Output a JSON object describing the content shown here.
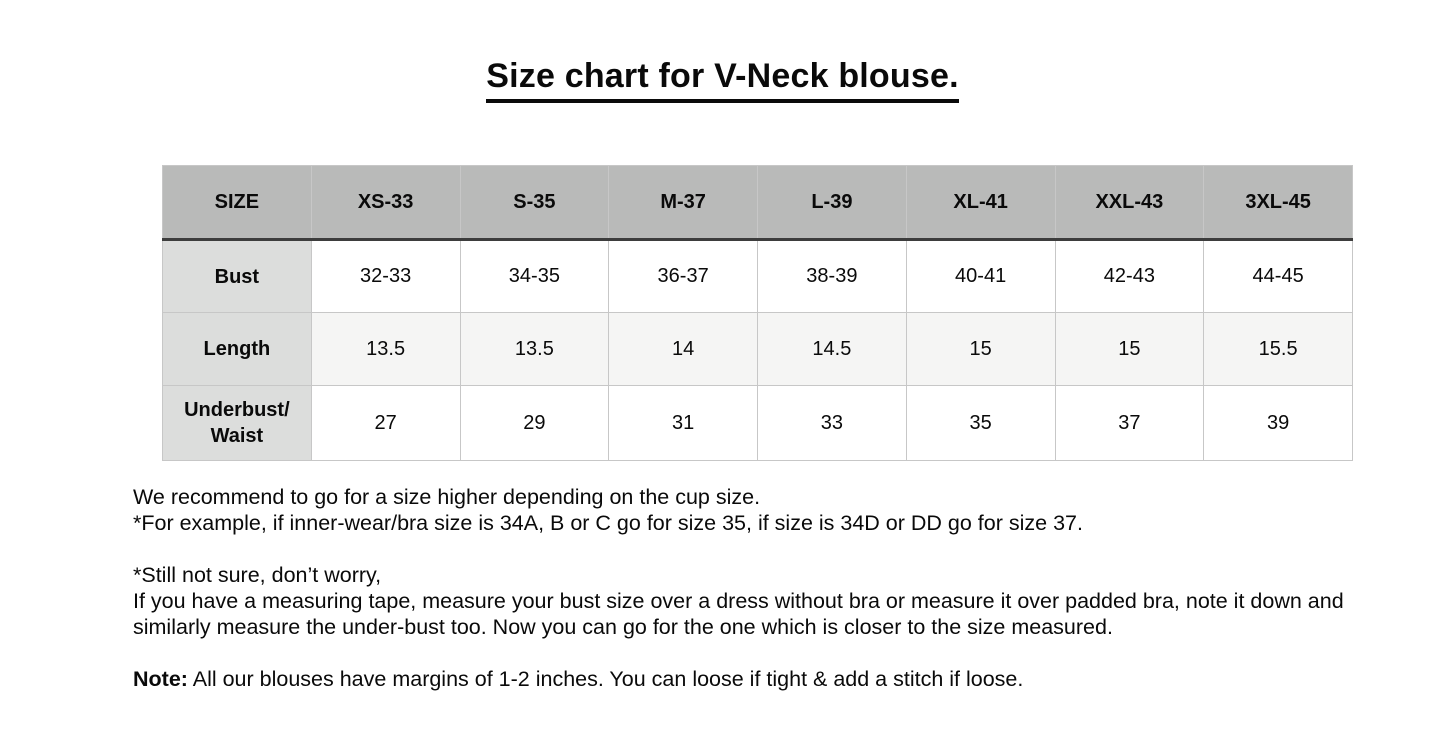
{
  "page": {
    "title": "Size chart for V-Neck blouse."
  },
  "colors": {
    "header_bg": "#b9bab9",
    "row_label_bg": "#dcdddc",
    "stripe_row_bg": "#f5f5f4",
    "grid_border": "#c7c7c7",
    "dark_border": "#3d3d3d",
    "text": "#0a0a0a"
  },
  "size_table": {
    "columns": [
      "SIZE",
      "XS-33",
      "S-35",
      "M-37",
      "L-39",
      "XL-41",
      "XXL-43",
      "3XL-45"
    ],
    "rows": [
      {
        "label": "Bust",
        "values": [
          "32-33",
          "34-35",
          "36-37",
          "38-39",
          "40-41",
          "42-43",
          "44-45"
        ]
      },
      {
        "label": "Length",
        "values": [
          "13.5",
          "13.5",
          "14",
          "14.5",
          "15",
          "15",
          "15.5"
        ]
      },
      {
        "label": "Underbust/ Waist",
        "values": [
          "27",
          "29",
          "31",
          "33",
          "35",
          "37",
          "39"
        ]
      }
    ]
  },
  "notes": {
    "recommendation_line1": "We recommend to go for a size higher depending on the cup size.",
    "recommendation_line2": "*For example, if inner-wear/bra size is 34A, B or C go for size 35, if size is 34D or DD go for size 37.",
    "measure_line1": "*Still not sure, don’t worry,",
    "measure_line2": "If you have a measuring tape, measure your bust size over a dress without bra or measure it over padded bra, note it down and similarly measure the under-bust too. Now you can go for the one which is closer to the size measured.",
    "note_label": "Note:",
    "note_text": "All our blouses have margins of 1-2 inches. You can loose if tight & add a stitch if loose."
  }
}
